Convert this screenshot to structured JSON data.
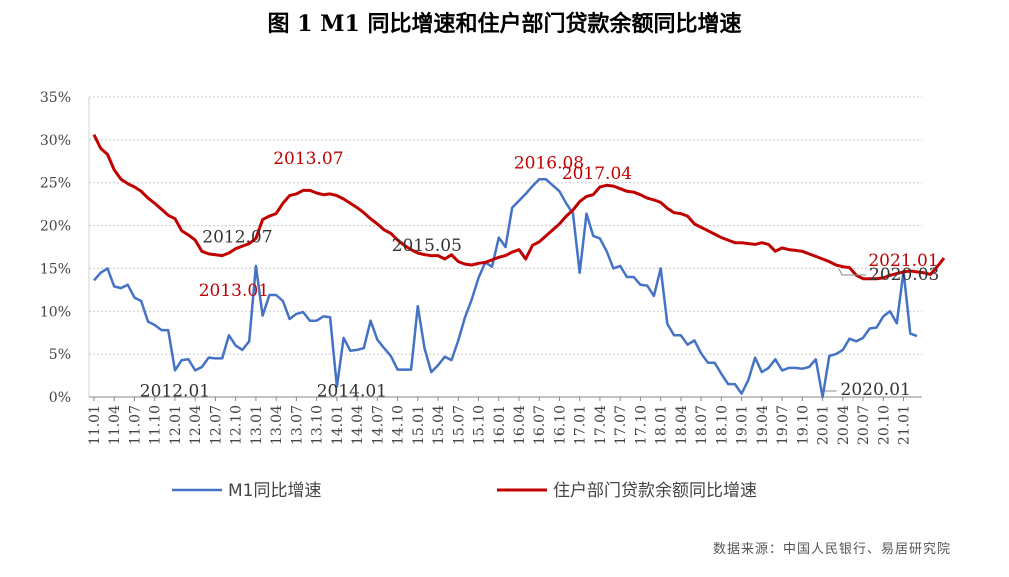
{
  "chart_data": {
    "type": "line",
    "title": "图 1   M1 同比增速和住户部门贷款余额同比增速",
    "ylim": [
      0,
      35
    ],
    "y_ticks": [
      "0%",
      "5%",
      "10%",
      "15%",
      "20%",
      "25%",
      "30%",
      "35%"
    ],
    "grid": "horizontal dotted",
    "legend_position": "bottom",
    "x_tick_labels": [
      "11.01",
      "11.04",
      "11.07",
      "11.10",
      "12.01",
      "12.04",
      "12.07",
      "12.10",
      "13.01",
      "13.04",
      "13.07",
      "13.10",
      "14.01",
      "14.04",
      "14.07",
      "14.10",
      "15.01",
      "15.04",
      "15.07",
      "15.10",
      "16.01",
      "16.04",
      "16.07",
      "16.10",
      "17.01",
      "17.04",
      "17.07",
      "17.10",
      "18.01",
      "18.04",
      "18.07",
      "18.10",
      "19.01",
      "19.04",
      "19.07",
      "19.10",
      "20.01",
      "20.04",
      "20.07",
      "20.10",
      "21.01"
    ],
    "series": [
      {
        "name": "M1同比增速",
        "color": "#4472C4",
        "values": [
          13.6,
          14.5,
          15,
          12.9,
          12.7,
          13.1,
          11.6,
          11.2,
          8.8,
          8.4,
          7.8,
          7.8,
          3.1,
          4.3,
          4.4,
          3.1,
          3.5,
          4.6,
          4.5,
          4.5,
          7.2,
          6,
          5.5,
          6.5,
          15.3,
          9.5,
          11.9,
          11.9,
          11.2,
          9.1,
          9.7,
          9.9,
          8.9,
          8.9,
          9.4,
          9.3,
          1.2,
          6.9,
          5.4,
          5.5,
          5.7,
          8.9,
          6.7,
          5.7,
          4.8,
          3.2,
          3.2,
          3.2,
          10.6,
          5.7,
          2.9,
          3.7,
          4.7,
          4.3,
          6.6,
          9.3,
          11.4,
          13.9,
          15.7,
          15.2,
          18.6,
          17.5,
          22.1,
          22.9,
          23.7,
          24.6,
          25.4,
          25.4,
          24.7,
          24,
          22.6,
          21.4,
          14.5,
          21.4,
          18.8,
          18.5,
          17,
          15,
          15.3,
          14,
          14,
          13.1,
          13,
          11.8,
          15,
          8.5,
          7.2,
          7.2,
          6.1,
          6.6,
          5.1,
          4,
          4,
          2.7,
          1.5,
          1.5,
          0.4,
          2,
          4.6,
          2.9,
          3.4,
          4.4,
          3.1,
          3.4,
          3.4,
          3.3,
          3.5,
          4.4,
          0,
          4.8,
          5,
          5.5,
          6.8,
          6.5,
          6.9,
          8,
          8.1,
          9.4,
          10,
          8.6,
          14.7,
          7.4,
          7.1
        ]
      },
      {
        "name": "住户部门贷款余额同比增速",
        "color": "#C00000",
        "values": [
          30.6,
          29,
          28.3,
          26.5,
          25.4,
          24.9,
          24.5,
          24,
          23.2,
          22.6,
          21.9,
          21.2,
          20.8,
          19.4,
          18.9,
          18.3,
          17,
          16.7,
          16.6,
          16.5,
          16.8,
          17.3,
          17.6,
          17.9,
          18.5,
          20.7,
          21.1,
          21.4,
          22.6,
          23.5,
          23.7,
          24.1,
          24.1,
          23.8,
          23.6,
          23.7,
          23.5,
          23.1,
          22.6,
          22.1,
          21.5,
          20.8,
          20.2,
          19.5,
          19.1,
          18.3,
          17.7,
          17.2,
          16.8,
          16.6,
          16.5,
          16.5,
          16.1,
          16.6,
          15.8,
          15.5,
          15.4,
          15.6,
          15.7,
          16,
          16.3,
          16.5,
          16.9,
          17.2,
          16.1,
          17.7,
          18.1,
          18.8,
          19.5,
          20.2,
          21.1,
          21.8,
          22.8,
          23.4,
          23.6,
          24.5,
          24.7,
          24.6,
          24.3,
          24,
          23.9,
          23.6,
          23.2,
          23,
          22.7,
          22,
          21.5,
          21.4,
          21.1,
          20.2,
          19.8,
          19.4,
          19,
          18.6,
          18.3,
          18,
          18,
          17.9,
          17.8,
          18,
          17.8,
          17,
          17.4,
          17.2,
          17.1,
          17,
          16.7,
          16.4,
          16.1,
          15.8,
          15.4,
          15.2,
          15.1,
          14.2,
          13.8,
          13.8,
          13.8,
          13.9,
          14.2,
          14.4,
          14.6,
          14.7,
          14.6,
          14.5,
          14.3,
          15.2,
          16.2
        ]
      }
    ],
    "annotations": [
      {
        "text": "2012.07",
        "color": "#333333",
        "series": 1,
        "index": 18
      },
      {
        "text": "2013.01",
        "color": "#C00000",
        "series": 0,
        "index": 24
      },
      {
        "text": "2013.07",
        "color": "#C00000",
        "series": 1,
        "index": 30
      },
      {
        "text": "2012.01",
        "color": "#333333",
        "series": 0,
        "index": 12
      },
      {
        "text": "2014.01",
        "color": "#333333",
        "series": 0,
        "index": 36
      },
      {
        "text": "2015.05",
        "color": "#333333",
        "series": 1,
        "index": 52
      },
      {
        "text": "2016.08",
        "color": "#C00000",
        "series": 0,
        "index": 67
      },
      {
        "text": "2017.04",
        "color": "#C00000",
        "series": 1,
        "index": 75
      },
      {
        "text": "2020.01",
        "color": "#333333",
        "series": 0,
        "index": 108
      },
      {
        "text": "2020.03",
        "color": "#333333",
        "series": 1,
        "index": 110
      },
      {
        "text": "2021.01",
        "color": "#C00000",
        "series": 1,
        "index": 120
      }
    ]
  },
  "source_note": "数据来源：中国人民银行、易居研究院"
}
